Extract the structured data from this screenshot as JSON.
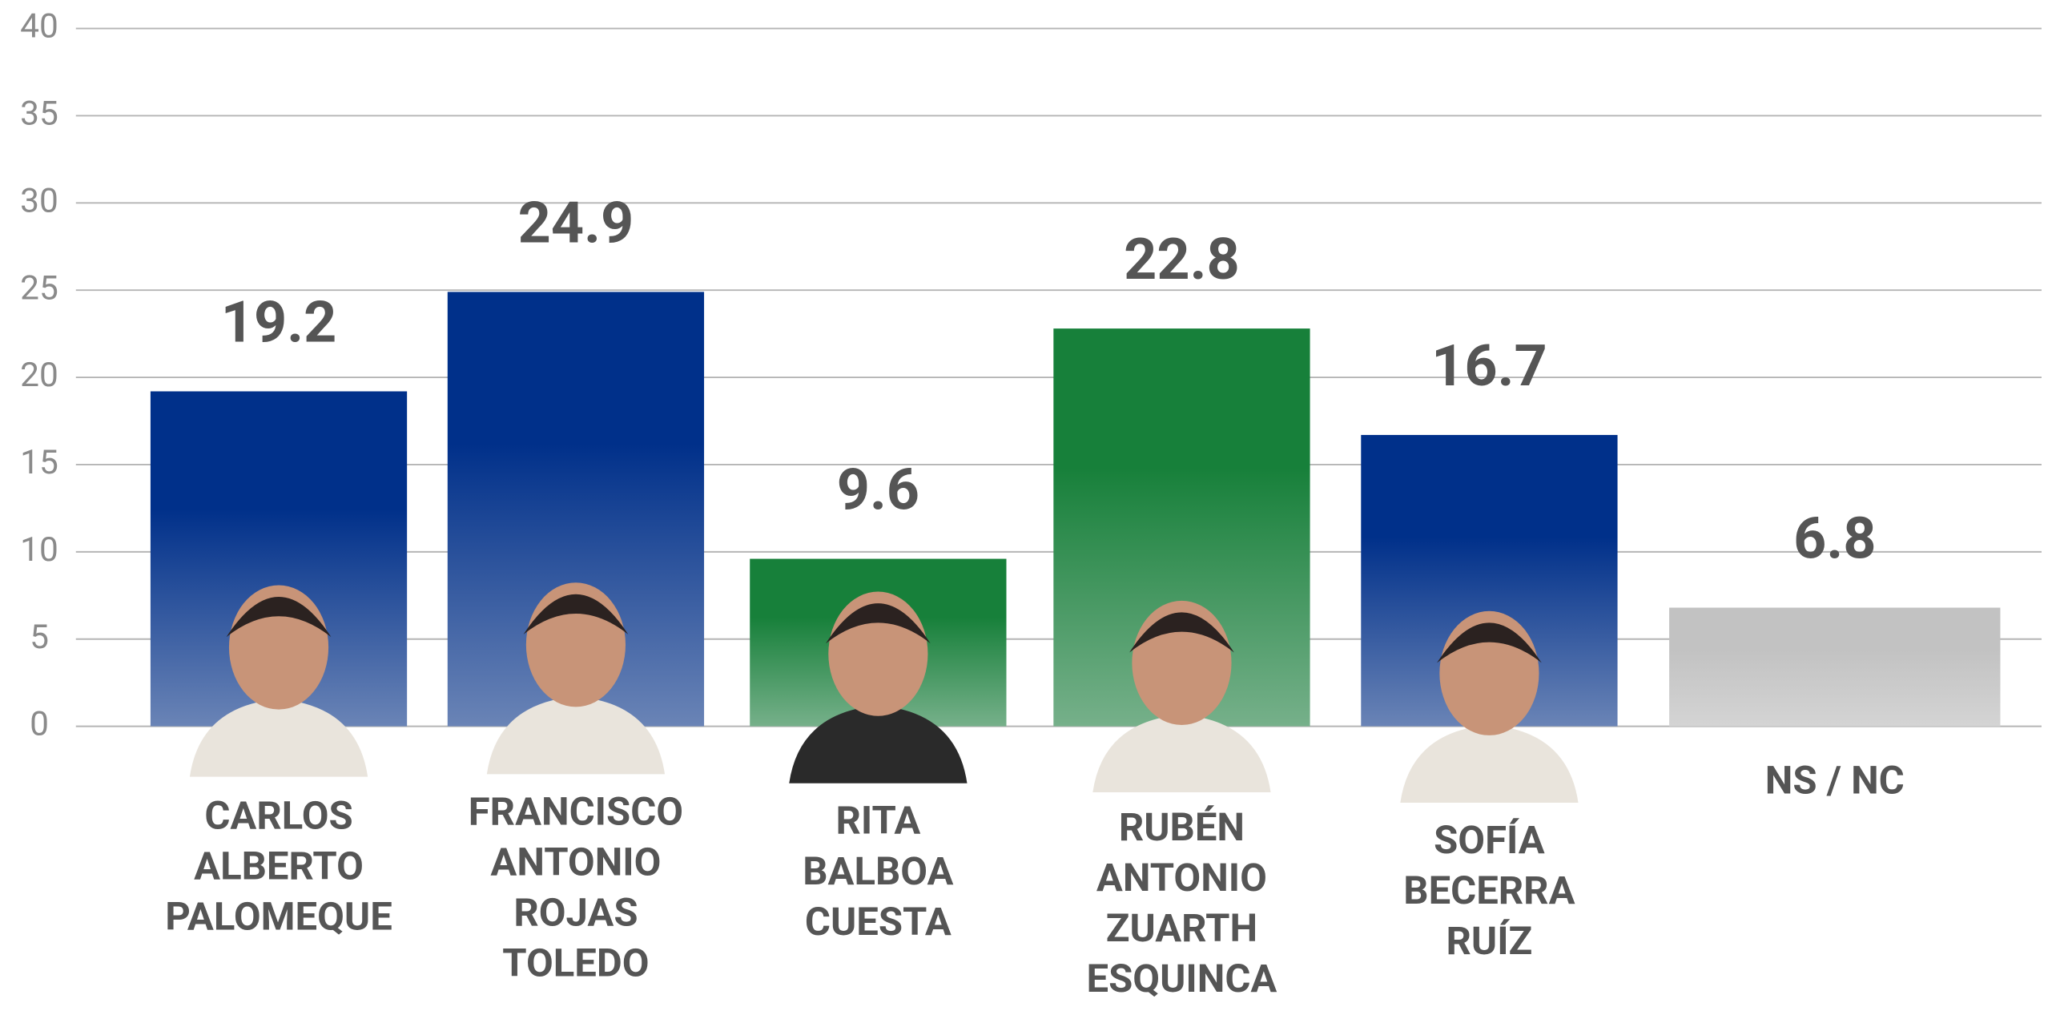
{
  "chart_data": {
    "type": "bar",
    "categories": [
      "CARLOS\nALBERTO\nPALOMEQUE",
      "FRANCISCO\nANTONIO\nROJAS\nTOLEDO",
      "RITA\nBALBOA\nCUESTA",
      "RUBÉN\nANTONIO\nZUARTH\nESQUINCA",
      "SOFÍA\nBECERRA\nRUÍZ",
      "NS / NC"
    ],
    "values": [
      19.2,
      24.9,
      9.6,
      22.8,
      16.7,
      6.8
    ],
    "colors": [
      "#00308a",
      "#00308a",
      "#17803a",
      "#17803a",
      "#00308a",
      "#c2c2c2"
    ],
    "ylim": [
      0,
      40
    ],
    "yticks": [
      0,
      5,
      10,
      15,
      20,
      25,
      30,
      35,
      40
    ],
    "grid": true
  }
}
